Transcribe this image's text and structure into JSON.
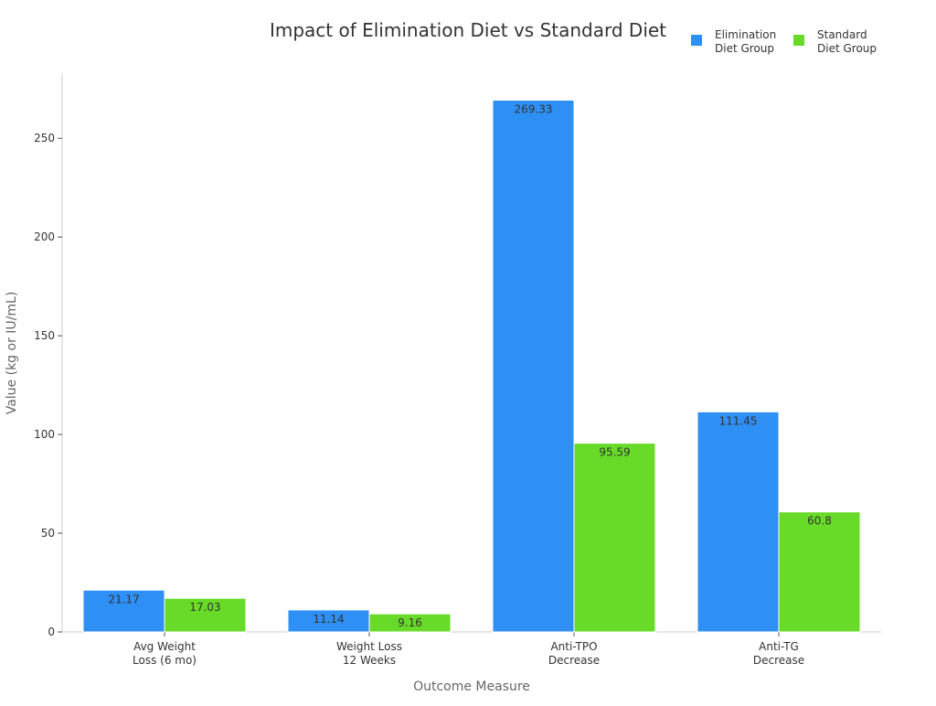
{
  "chart_data": {
    "type": "bar",
    "title": "Impact of Elimination Diet vs Standard Diet",
    "xlabel": "Outcome Measure",
    "ylabel": "Value (kg or IU/mL)",
    "categories": [
      [
        "Avg Weight",
        "Loss (6 mo)"
      ],
      [
        "Weight Loss",
        "12 Weeks"
      ],
      [
        "Anti-TPO",
        "Decrease"
      ],
      [
        "Anti-TG",
        "Decrease"
      ]
    ],
    "series": [
      {
        "name": [
          "Elimination",
          "Diet Group"
        ],
        "color": "#2e8ff4",
        "values": [
          21.17,
          11.14,
          269.33,
          111.45
        ]
      },
      {
        "name": [
          "Standard",
          "Diet Group"
        ],
        "color": "#67db28",
        "values": [
          17.03,
          9.16,
          95.59,
          60.8
        ]
      }
    ],
    "ylim": [
      0,
      283
    ],
    "yticks": [
      0,
      50,
      100,
      150,
      200,
      250
    ],
    "grid": false,
    "legend": "top-right"
  }
}
